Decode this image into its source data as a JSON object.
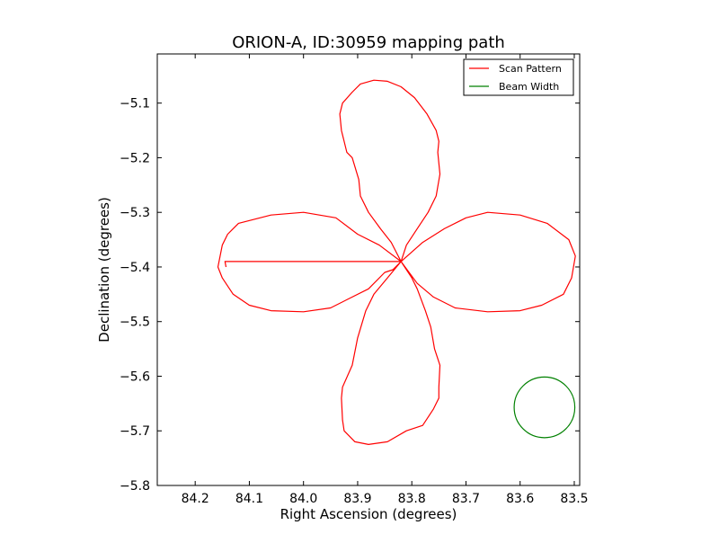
{
  "chart_data": {
    "type": "line",
    "title": "ORION-A, ID:30959 mapping path",
    "xlabel": "Right Ascension (degrees)",
    "ylabel": "Declination (degrees)",
    "xlim": [
      84.27,
      83.49
    ],
    "ylim": [
      -5.8,
      -5.01
    ],
    "x_inverted": true,
    "xticks": [
      84.2,
      84.1,
      84.0,
      83.9,
      83.8,
      83.7,
      83.6,
      83.5
    ],
    "xtick_labels": [
      "84.2",
      "84.1",
      "84.0",
      "83.9",
      "83.8",
      "83.7",
      "83.6",
      "83.5"
    ],
    "yticks": [
      -5.1,
      -5.2,
      -5.3,
      -5.4,
      -5.5,
      -5.6,
      -5.7,
      -5.8
    ],
    "ytick_labels": [
      "−5.1",
      "−5.2",
      "−5.3",
      "−5.4",
      "−5.5",
      "−5.6",
      "−5.7",
      "−5.8"
    ],
    "grid": false,
    "legend_position": "top-right",
    "series": [
      {
        "name": "Scan Pattern",
        "color": "#ff0000",
        "ra": [
          83.82,
          83.838,
          83.858,
          83.88,
          83.895,
          83.898,
          83.91,
          83.92,
          83.93,
          83.933,
          83.928,
          83.91,
          83.895,
          83.87,
          83.845,
          83.82,
          83.795,
          83.772,
          83.755,
          83.75,
          83.752,
          83.748,
          83.755,
          83.77,
          83.79,
          83.81,
          83.82,
          83.86,
          83.9,
          83.94,
          84.0,
          84.06,
          84.12,
          84.14,
          84.15,
          84.158,
          84.15,
          84.13,
          84.1,
          84.06,
          84.0,
          83.95,
          83.92,
          83.88,
          83.85,
          83.835,
          83.82,
          83.845,
          83.87,
          83.885,
          83.9,
          83.91,
          83.928,
          83.93,
          83.928,
          83.925,
          83.905,
          83.88,
          83.845,
          83.81,
          83.78,
          83.76,
          83.75,
          83.75,
          83.748,
          83.758,
          83.765,
          83.775,
          83.79,
          83.8,
          83.82,
          83.78,
          83.74,
          83.7,
          83.66,
          83.6,
          83.55,
          83.51,
          83.498,
          83.505,
          83.52,
          83.56,
          83.6,
          83.66,
          83.72,
          83.76,
          83.79,
          83.82,
          84.145,
          84.143
        ],
        "dec": [
          -5.39,
          -5.355,
          -5.33,
          -5.3,
          -5.27,
          -5.24,
          -5.2,
          -5.19,
          -5.15,
          -5.12,
          -5.1,
          -5.08,
          -5.065,
          -5.058,
          -5.06,
          -5.07,
          -5.09,
          -5.12,
          -5.15,
          -5.17,
          -5.19,
          -5.23,
          -5.27,
          -5.3,
          -5.33,
          -5.36,
          -5.39,
          -5.36,
          -5.34,
          -5.31,
          -5.3,
          -5.305,
          -5.32,
          -5.34,
          -5.36,
          -5.4,
          -5.42,
          -5.45,
          -5.47,
          -5.48,
          -5.482,
          -5.475,
          -5.46,
          -5.44,
          -5.41,
          -5.405,
          -5.39,
          -5.42,
          -5.45,
          -5.48,
          -5.53,
          -5.58,
          -5.62,
          -5.64,
          -5.68,
          -5.7,
          -5.72,
          -5.725,
          -5.72,
          -5.7,
          -5.69,
          -5.66,
          -5.64,
          -5.62,
          -5.58,
          -5.55,
          -5.51,
          -5.48,
          -5.44,
          -5.42,
          -5.39,
          -5.355,
          -5.33,
          -5.31,
          -5.3,
          -5.305,
          -5.32,
          -5.35,
          -5.38,
          -5.42,
          -5.45,
          -5.47,
          -5.48,
          -5.482,
          -5.475,
          -5.455,
          -5.43,
          -5.39,
          -5.39,
          -5.4
        ]
      },
      {
        "name": "Beam Width",
        "color": "#008000",
        "shape": "circle",
        "center_ra": 83.555,
        "center_dec": -5.657,
        "radius_ra": 0.056
      }
    ]
  }
}
